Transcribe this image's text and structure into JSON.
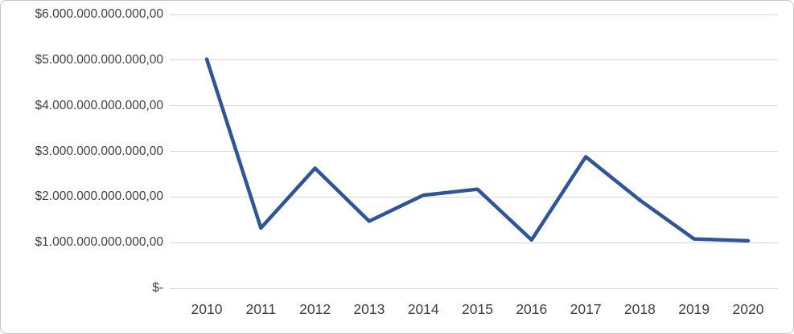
{
  "chart": {
    "background": "#FFFFFF",
    "border_color": "#C6C6C6"
  },
  "chart_data": {
    "type": "line",
    "title": "",
    "xlabel": "",
    "ylabel": "",
    "legend": "none",
    "grid": true,
    "categories": [
      "2010",
      "2011",
      "2012",
      "2013",
      "2014",
      "2015",
      "2016",
      "2017",
      "2018",
      "2019",
      "2020"
    ],
    "values": [
      5020000000000,
      1320000000000,
      2630000000000,
      1470000000000,
      2040000000000,
      2170000000000,
      1060000000000,
      2880000000000,
      1930000000000,
      1080000000000,
      1040000000000
    ],
    "ylim": [
      0,
      6000000000000
    ],
    "y_tick_values": [
      6000000000000,
      5000000000000,
      4000000000000,
      3000000000000,
      2000000000000,
      1000000000000,
      0
    ],
    "y_tick_labels": [
      "$6.000.000.000.000,00",
      "$5.000.000.000.000,00",
      "$4.000.000.000.000,00",
      "$3.000.000.000.000,00",
      "$2.000.000.000.000,00",
      "$1.000.000.000.000,00",
      "$-"
    ],
    "line_color": "#2F5597",
    "gridline_color": "#D9D9D9",
    "tick_label_color": "#3F3F3F"
  }
}
